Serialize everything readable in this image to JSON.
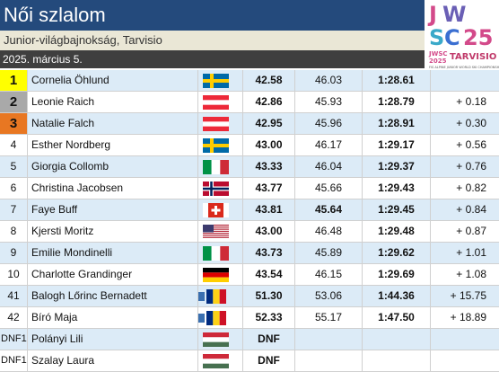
{
  "header": {
    "title": "Női szlalom",
    "subtitle": "Junior-világbajnokság, Tarvisio",
    "date": "2025. március 5."
  },
  "logo": {
    "line1": "JWSC",
    "line2": "SC25",
    "year": "JWSC 2025",
    "location": "TARVISIO",
    "tagline": "FIS ALPINE JUNIOR WORLD SKI CHAMPIONSHIPS",
    "colors": {
      "pink": "#d34a8a",
      "purple": "#6a5fb5",
      "teal": "#3aa9c9",
      "blue": "#3b6fd1"
    }
  },
  "colors": {
    "gold": "#ffff00",
    "silver": "#a9a9a9",
    "bronze": "#e87722",
    "row_alt": "#dcebf7",
    "header_blue": "#244a7c"
  },
  "results": [
    {
      "rank": "1",
      "name": "Cornelia Öhlund",
      "flag": "sweden-flag",
      "run1": "42.58",
      "run2": "46.03",
      "total": "1:28.61",
      "diff": "",
      "medal": "gold",
      "run2_bold": false
    },
    {
      "rank": "2",
      "name": "Leonie Raich",
      "flag": "austria-flag",
      "run1": "42.86",
      "run2": "45.93",
      "total": "1:28.79",
      "diff": "+ 0.18",
      "medal": "silver",
      "run2_bold": false
    },
    {
      "rank": "3",
      "name": "Natalie Falch",
      "flag": "austria-flag",
      "run1": "42.95",
      "run2": "45.96",
      "total": "1:28.91",
      "diff": "+ 0.30",
      "medal": "bronze",
      "run2_bold": false
    },
    {
      "rank": "4",
      "name": "Esther Nordberg",
      "flag": "sweden-flag",
      "run1": "43.00",
      "run2": "46.17",
      "total": "1:29.17",
      "diff": "+ 0.56",
      "medal": "",
      "run2_bold": false
    },
    {
      "rank": "5",
      "name": "Giorgia Collomb",
      "flag": "italy-flag",
      "run1": "43.33",
      "run2": "46.04",
      "total": "1:29.37",
      "diff": "+ 0.76",
      "medal": "",
      "run2_bold": false
    },
    {
      "rank": "6",
      "name": "Christina Jacobsen",
      "flag": "norway-flag",
      "run1": "43.77",
      "run2": "45.66",
      "total": "1:29.43",
      "diff": "+ 0.82",
      "medal": "",
      "run2_bold": false
    },
    {
      "rank": "7",
      "name": "Faye Buff",
      "flag": "switzerland-flag",
      "run1": "43.81",
      "run2": "45.64",
      "total": "1:29.45",
      "diff": "+ 0.84",
      "medal": "",
      "run2_bold": true
    },
    {
      "rank": "8",
      "name": "Kjersti Moritz",
      "flag": "usa-flag",
      "run1": "43.00",
      "run2": "46.48",
      "total": "1:29.48",
      "diff": "+ 0.87",
      "medal": "",
      "run2_bold": false
    },
    {
      "rank": "9",
      "name": "Emilie Mondinelli",
      "flag": "italy-flag",
      "run1": "43.73",
      "run2": "45.89",
      "total": "1:29.62",
      "diff": "+ 1.01",
      "medal": "",
      "run2_bold": false
    },
    {
      "rank": "10",
      "name": "Charlotte Grandinger",
      "flag": "germany-flag",
      "run1": "43.54",
      "run2": "46.15",
      "total": "1:29.69",
      "diff": "+ 1.08",
      "medal": "",
      "run2_bold": false
    },
    {
      "rank": "41",
      "name": "Balogh Lőrinc Bernadett",
      "flag": "eu-romania-flag",
      "run1": "51.30",
      "run2": "53.06",
      "total": "1:44.36",
      "diff": "+ 15.75",
      "medal": "",
      "run2_bold": false
    },
    {
      "rank": "42",
      "name": "Bíró Maja",
      "flag": "eu-romania-flag",
      "run1": "52.33",
      "run2": "55.17",
      "total": "1:47.50",
      "diff": "+ 18.89",
      "medal": "",
      "run2_bold": false
    },
    {
      "rank": "DNF1",
      "name": "Polányi Lili",
      "flag": "hungary-flag",
      "run1": "DNF",
      "run2": "",
      "total": "",
      "diff": "",
      "medal": "",
      "run2_bold": false
    },
    {
      "rank": "DNF1",
      "name": "Szalay Laura",
      "flag": "hungary-flag",
      "run1": "DNF",
      "run2": "",
      "total": "",
      "diff": "",
      "medal": "",
      "run2_bold": false
    }
  ]
}
